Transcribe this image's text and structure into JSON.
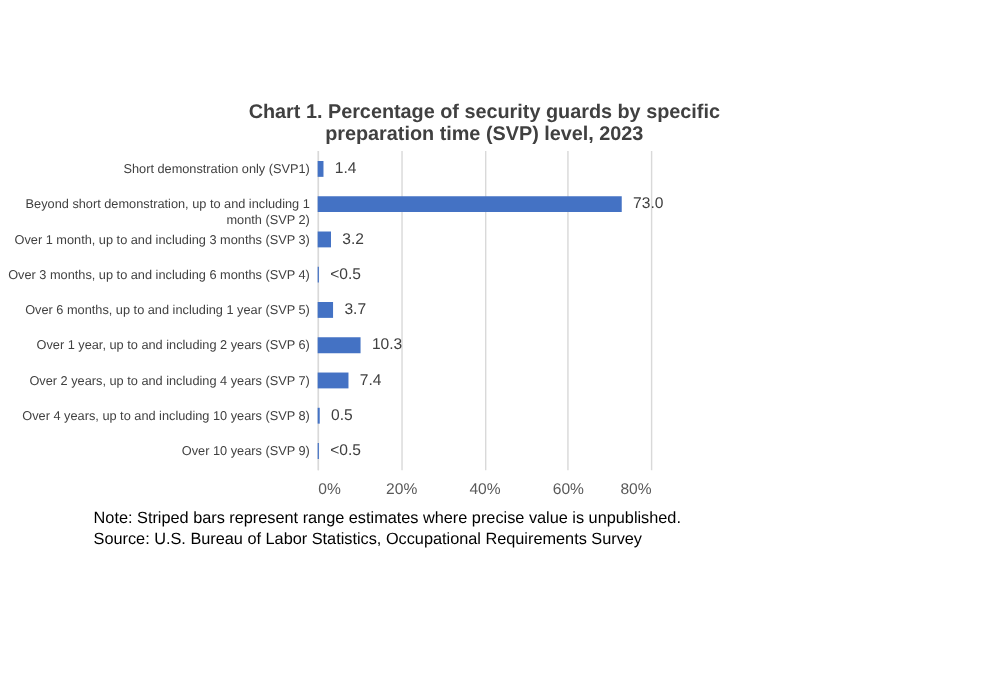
{
  "chart_data": {
    "type": "bar",
    "orientation": "horizontal",
    "title": "Chart 1. Percentage of security guards by specific preparation time (SVP) level, 2023",
    "categories": [
      "Short demonstration only (SVP1)",
      "Beyond short demonstration, up to and including 1 month (SVP 2)",
      "Over 1 month, up to and including 3 months (SVP 3)",
      "Over 3 months, up to and including 6 months (SVP 4)",
      "Over 6 months, up to and including 1 year (SVP 5)",
      "Over 1 year, up to and including 2 years (SVP 6)",
      "Over 2 years, up to and including 4 years (SVP 7)",
      "Over 4 years, up to and including 10 years (SVP 8)",
      "Over 10 years (SVP 9)"
    ],
    "values": [
      1.4,
      73.0,
      3.2,
      0.3,
      3.7,
      10.3,
      7.4,
      0.5,
      0.3
    ],
    "value_labels": [
      "1.4",
      "73.0",
      "3.2",
      "<0.5",
      "3.7",
      "10.3",
      "7.4",
      "0.5",
      "<0.5"
    ],
    "color": "#4472c4",
    "xlim": [
      0,
      80
    ],
    "xticks": [
      {
        "value": 0,
        "label": "0%"
      },
      {
        "value": 20,
        "label": "20%"
      },
      {
        "value": 40,
        "label": "40%"
      },
      {
        "value": 60,
        "label": "60%"
      },
      {
        "value": 80,
        "label": "80%"
      }
    ],
    "grid": "x",
    "annotations": [
      "Note: Striped bars represent range estimates where precise value is unpublished.",
      "Source: U.S. Bureau of Labor Statistics, Occupational Requirements Survey"
    ]
  }
}
